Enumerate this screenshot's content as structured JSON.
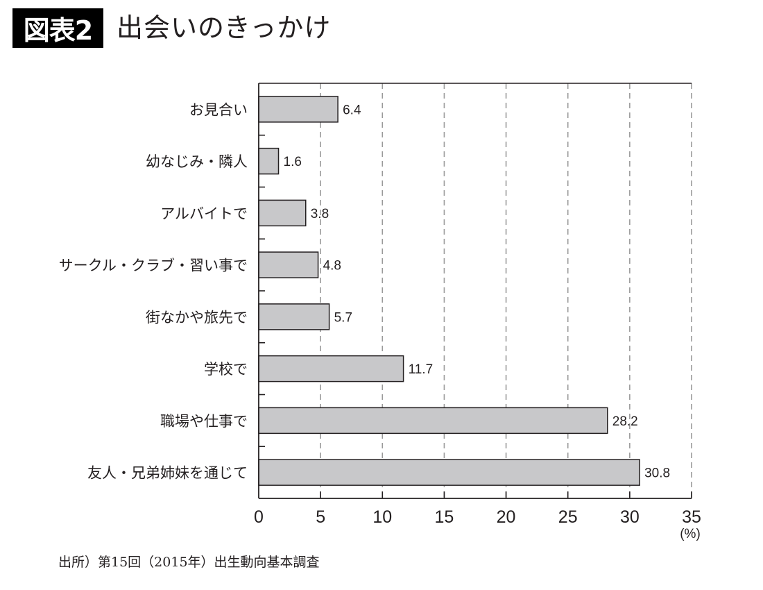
{
  "header": {
    "figure_number": "図表2",
    "title": "出会いのきっかけ"
  },
  "source_note": "出所）第15回（2015年）出生動向基本調査",
  "colors": {
    "bar_fill": "#c8c8ca",
    "bar_stroke": "#231f20",
    "grid": "#9a9a9a",
    "text": "#231f20",
    "badge_bg": "#000000"
  },
  "chart_data": {
    "type": "bar",
    "orientation": "horizontal",
    "title": "出会いのきっかけ",
    "categories": [
      "お見合い",
      "幼なじみ・隣人",
      "アルバイトで",
      "サークル・クラブ・習い事で",
      "街なかや旅先で",
      "学校で",
      "職場や仕事で",
      "友人・兄弟姉妹を通じて"
    ],
    "values": [
      6.4,
      1.6,
      3.8,
      4.8,
      5.7,
      11.7,
      28.2,
      30.8
    ],
    "value_labels": [
      "6.4",
      "1.6",
      "3.8",
      "4.8",
      "5.7",
      "11.7",
      "28.2",
      "30.8"
    ],
    "xlabel": "",
    "unit_label": "(%)",
    "ylabel": "",
    "xlim": [
      0,
      35
    ],
    "xticks": [
      0,
      5,
      10,
      15,
      20,
      25,
      30,
      35
    ],
    "xtick_labels": [
      "0",
      "5",
      "10",
      "15",
      "20",
      "25",
      "30",
      "35"
    ],
    "grid": "vertical dashed",
    "legend": "none"
  }
}
